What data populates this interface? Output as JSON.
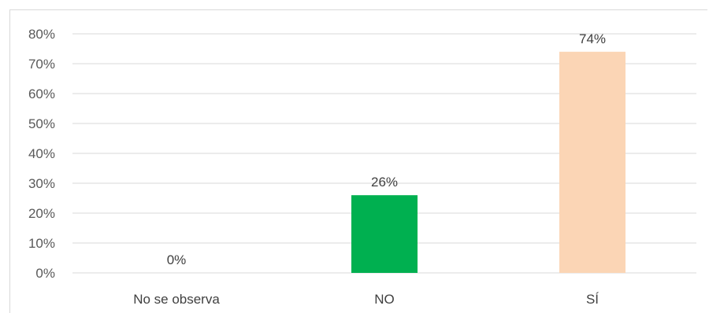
{
  "chart_data": {
    "type": "bar",
    "title": "",
    "xlabel": "",
    "ylabel": "",
    "categories": [
      "No se observa",
      "NO",
      "SÍ"
    ],
    "values": [
      0,
      26,
      74
    ],
    "data_labels": [
      "0%",
      "26%",
      "74%"
    ],
    "bar_colors": [
      "#d9d9d9",
      "#00b050",
      "#fbd5b5"
    ],
    "ylim": [
      0,
      80
    ],
    "yticks": [
      0,
      10,
      20,
      30,
      40,
      50,
      60,
      70,
      80
    ],
    "ytick_labels": [
      "0%",
      "10%",
      "20%",
      "30%",
      "40%",
      "50%",
      "60%",
      "70%",
      "80%"
    ],
    "grid": true,
    "legend": "none"
  }
}
